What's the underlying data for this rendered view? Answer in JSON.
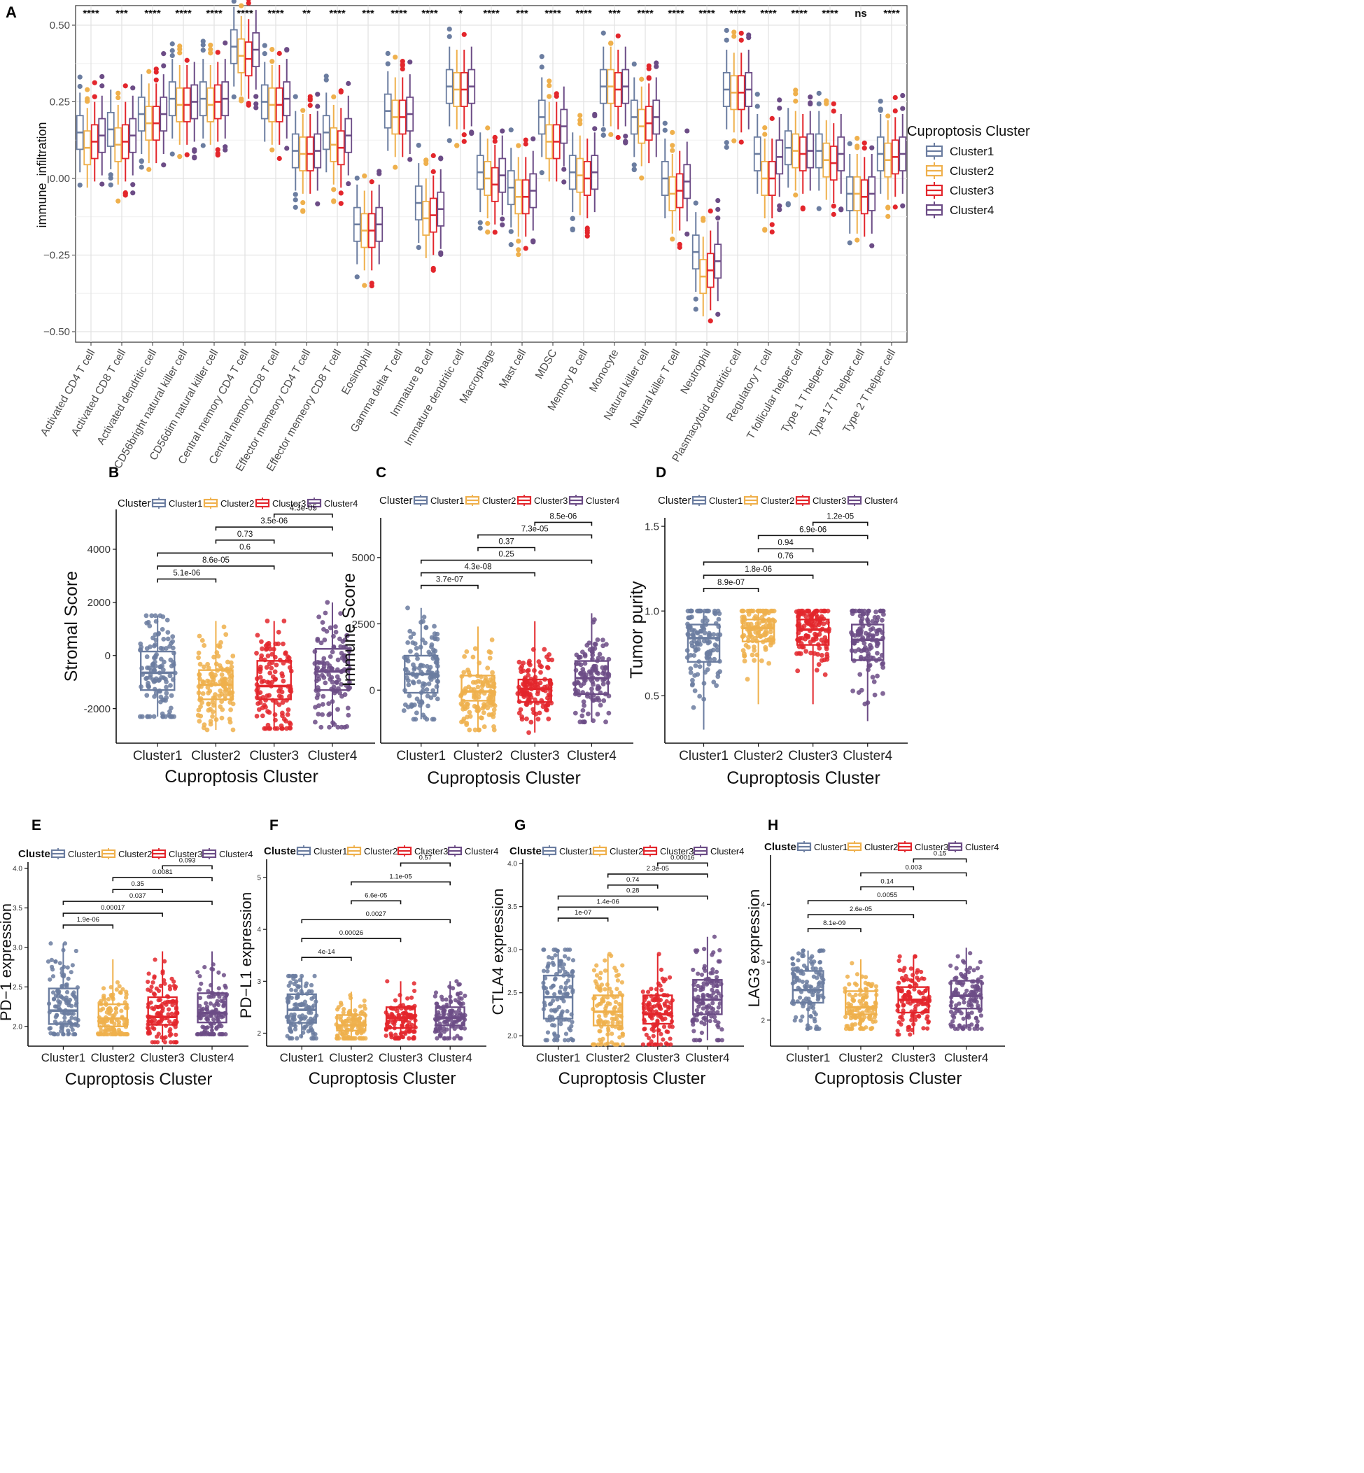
{
  "colors": {
    "Cluster1": "#6b7da0",
    "Cluster2": "#efb04c",
    "Cluster3": "#e3262c",
    "Cluster4": "#6c4c86"
  },
  "chart_data": [
    {
      "panel": "A",
      "type": "box",
      "ylabel": "immune_infiltration",
      "ylim": [
        -0.55,
        0.56
      ],
      "yticks": [
        -0.5,
        -0.25,
        0.0,
        0.25,
        0.5
      ],
      "ytick_labels": [
        "−0.50",
        "−0.25",
        "0.00",
        "0.25",
        "0.50"
      ],
      "legend_title": "Cuproptosis Cluster",
      "series": [
        "Cluster1",
        "Cluster2",
        "Cluster3",
        "Cluster4"
      ],
      "categories": [
        "Activated CD4 T cell",
        "Activated CD8 T cell",
        "Activated dendritic cell",
        "CD56bright natural killer cell",
        "CD56dim natural killer cell",
        "Central memory CD4 T cell",
        "Central memory CD8 T cell",
        "Effector memeory CD4 T cell",
        "Effector memeory CD8 T cell",
        "Eosinophil",
        "Gamma delta T cell",
        "Immature  B cell",
        "Immature dendritic cell",
        "Macrophage",
        "Mast cell",
        "MDSC",
        "Memory B cell",
        "Monocyte",
        "Natural killer cell",
        "Natural killer T cell",
        "Neutrophil",
        "Plasmacytoid dendritic cell",
        "Regulatory T cell",
        "T follicular helper cell",
        "Type 1 T helper cell",
        "Type 17 T helper cell",
        "Type 2 T helper cell"
      ],
      "significance": [
        "****",
        "***",
        "****",
        "****",
        "****",
        "****",
        "****",
        "**",
        "****",
        "***",
        "****",
        "****",
        "*",
        "****",
        "***",
        "****",
        "****",
        "***",
        "****",
        "****",
        "****",
        "****",
        "****",
        "****",
        "****",
        "ns",
        "****"
      ],
      "medians": [
        [
          0.15,
          0.1,
          0.12,
          0.14
        ],
        [
          0.16,
          0.11,
          0.12,
          0.14
        ],
        [
          0.21,
          0.18,
          0.18,
          0.21
        ],
        [
          0.26,
          0.24,
          0.24,
          0.25
        ],
        [
          0.26,
          0.24,
          0.25,
          0.26
        ],
        [
          0.43,
          0.4,
          0.39,
          0.42
        ],
        [
          0.25,
          0.24,
          0.24,
          0.26
        ],
        [
          0.09,
          0.08,
          0.08,
          0.09
        ],
        [
          0.15,
          0.11,
          0.1,
          0.14
        ],
        [
          -0.15,
          -0.17,
          -0.17,
          -0.15
        ],
        [
          0.22,
          0.2,
          0.2,
          0.21
        ],
        [
          -0.08,
          -0.13,
          -0.12,
          -0.1
        ],
        [
          0.3,
          0.29,
          0.29,
          0.3
        ],
        [
          0.02,
          0.0,
          -0.02,
          0.01
        ],
        [
          -0.03,
          -0.06,
          -0.06,
          -0.04
        ],
        [
          0.2,
          0.12,
          0.12,
          0.17
        ],
        [
          0.02,
          0.01,
          0.0,
          0.02
        ],
        [
          0.3,
          0.3,
          0.29,
          0.3
        ],
        [
          0.2,
          0.17,
          0.18,
          0.2
        ],
        [
          0.0,
          -0.05,
          -0.04,
          -0.01
        ],
        [
          -0.24,
          -0.32,
          -0.3,
          -0.27
        ],
        [
          0.29,
          0.28,
          0.28,
          0.29
        ],
        [
          0.08,
          0.0,
          0.0,
          0.07
        ],
        [
          0.1,
          0.09,
          0.08,
          0.09
        ],
        [
          0.09,
          0.06,
          0.05,
          0.08
        ],
        [
          -0.05,
          -0.05,
          -0.06,
          -0.05
        ],
        [
          0.08,
          0.06,
          0.07,
          0.08
        ]
      ]
    },
    {
      "panel": "B",
      "type": "box",
      "xlabel": "Cuproptosis Cluster",
      "ylabel": "Stromal Score",
      "legend_title": "Cluster",
      "categories": [
        "Cluster1",
        "Cluster2",
        "Cluster3",
        "Cluster4"
      ],
      "ylim": [
        -3300,
        5500
      ],
      "yticks": [
        -2000,
        0,
        2000,
        4000
      ],
      "ytick_labels": [
        "-2000",
        "0",
        "2000",
        "4000"
      ],
      "box_stats": [
        [
          -2300,
          -1300,
          -650,
          150,
          1500
        ],
        [
          -2800,
          -1650,
          -1100,
          -550,
          1300
        ],
        [
          -2750,
          -1650,
          -1150,
          -200,
          1300
        ],
        [
          -2700,
          -1300,
          -600,
          250,
          2000
        ]
      ],
      "comparisons": [
        {
          "pair": [
            1,
            2
          ],
          "label": "5.1e-06"
        },
        {
          "pair": [
            1,
            3
          ],
          "label": "8.6e-05"
        },
        {
          "pair": [
            1,
            4
          ],
          "label": "0.6"
        },
        {
          "pair": [
            2,
            3
          ],
          "label": "0.73"
        },
        {
          "pair": [
            2,
            4
          ],
          "label": "3.5e-06"
        },
        {
          "pair": [
            3,
            4
          ],
          "label": "4.3e-05"
        }
      ]
    },
    {
      "panel": "C",
      "type": "box",
      "xlabel": "Cuproptosis Cluster",
      "ylabel": "Immune Score",
      "legend_title": "Cluster",
      "categories": [
        "Cluster1",
        "Cluster2",
        "Cluster3",
        "Cluster4"
      ],
      "ylim": [
        -2000,
        6500
      ],
      "yticks": [
        0,
        2500,
        5000
      ],
      "ytick_labels": [
        "0",
        "2500",
        "5000"
      ],
      "box_stats": [
        [
          -1100,
          -100,
          600,
          1300,
          3100
        ],
        [
          -1500,
          -400,
          -50,
          550,
          2400
        ],
        [
          -1600,
          -450,
          50,
          400,
          2600
        ],
        [
          -1200,
          -150,
          450,
          1100,
          2900
        ]
      ],
      "comparisons": [
        {
          "pair": [
            1,
            2
          ],
          "label": "3.7e-07"
        },
        {
          "pair": [
            1,
            3
          ],
          "label": "4.3e-08"
        },
        {
          "pair": [
            1,
            4
          ],
          "label": "0.25"
        },
        {
          "pair": [
            2,
            3
          ],
          "label": "0.37"
        },
        {
          "pair": [
            2,
            4
          ],
          "label": "7.3e-05"
        },
        {
          "pair": [
            3,
            4
          ],
          "label": "8.5e-06"
        }
      ]
    },
    {
      "panel": "D",
      "type": "box",
      "xlabel": "Cuproptosis Cluster",
      "ylabel": "Tumor purity",
      "legend_title": "Cluster",
      "categories": [
        "Cluster1",
        "Cluster2",
        "Cluster3",
        "Cluster4"
      ],
      "ylim": [
        0.22,
        1.55
      ],
      "yticks": [
        0.5,
        1.0,
        1.5
      ],
      "ytick_labels": [
        "0.5",
        "1.0",
        "1.5"
      ],
      "box_stats": [
        [
          0.3,
          0.7,
          0.84,
          0.92,
          1.0
        ],
        [
          0.45,
          0.82,
          0.9,
          0.95,
          1.0
        ],
        [
          0.45,
          0.8,
          0.89,
          0.95,
          1.0
        ],
        [
          0.35,
          0.71,
          0.83,
          0.92,
          1.0
        ]
      ],
      "comparisons": [
        {
          "pair": [
            1,
            2
          ],
          "label": "8.9e-07"
        },
        {
          "pair": [
            1,
            3
          ],
          "label": "1.8e-06"
        },
        {
          "pair": [
            1,
            4
          ],
          "label": "0.76"
        },
        {
          "pair": [
            2,
            3
          ],
          "label": "0.94"
        },
        {
          "pair": [
            2,
            4
          ],
          "label": "6.9e-06"
        },
        {
          "pair": [
            3,
            4
          ],
          "label": "1.2e-05"
        }
      ]
    },
    {
      "panel": "E",
      "type": "box",
      "xlabel": "Cuproptosis Cluster",
      "ylabel": "PD−1 expression",
      "legend_title": "Cluster",
      "categories": [
        "Cluster1",
        "Cluster2",
        "Cluster3",
        "Cluster4"
      ],
      "ylim": [
        1.75,
        4.08
      ],
      "yticks": [
        2.0,
        2.5,
        3.0,
        3.5,
        4.0
      ],
      "ytick_labels": [
        "2.0",
        "2.5",
        "3.0",
        "3.5",
        "4.0"
      ],
      "box_stats": [
        [
          1.9,
          2.03,
          2.2,
          2.48,
          3.05
        ],
        [
          1.9,
          2.0,
          2.1,
          2.28,
          2.85
        ],
        [
          1.8,
          2.02,
          2.12,
          2.37,
          2.95
        ],
        [
          1.9,
          2.05,
          2.17,
          2.42,
          2.95
        ]
      ],
      "comparisons": [
        {
          "pair": [
            1,
            2
          ],
          "label": "1.9e-06"
        },
        {
          "pair": [
            1,
            3
          ],
          "label": "0.00017"
        },
        {
          "pair": [
            1,
            4
          ],
          "label": "0.037"
        },
        {
          "pair": [
            2,
            3
          ],
          "label": "0.35"
        },
        {
          "pair": [
            2,
            4
          ],
          "label": "0.0081"
        },
        {
          "pair": [
            3,
            4
          ],
          "label": "0.093"
        }
      ]
    },
    {
      "panel": "F",
      "type": "box",
      "xlabel": "Cuproptosis Cluster",
      "ylabel": "PD−L1 expression",
      "legend_title": "Cluster",
      "categories": [
        "Cluster1",
        "Cluster2",
        "Cluster3",
        "Cluster4"
      ],
      "ylim": [
        1.75,
        5.35
      ],
      "yticks": [
        2,
        3,
        4,
        5
      ],
      "ytick_labels": [
        "2",
        "3",
        "4",
        "5"
      ],
      "box_stats": [
        [
          1.9,
          2.2,
          2.45,
          2.75,
          3.1
        ],
        [
          1.9,
          2.05,
          2.15,
          2.35,
          2.8
        ],
        [
          1.9,
          2.1,
          2.3,
          2.5,
          3.0
        ],
        [
          1.9,
          2.15,
          2.3,
          2.5,
          3.0
        ]
      ],
      "comparisons": [
        {
          "pair": [
            1,
            2
          ],
          "label": "4e-14"
        },
        {
          "pair": [
            1,
            3
          ],
          "label": "0.00026"
        },
        {
          "pair": [
            1,
            4
          ],
          "label": "0.0027"
        },
        {
          "pair": [
            2,
            3
          ],
          "label": "6.6e-05"
        },
        {
          "pair": [
            2,
            4
          ],
          "label": "1.1e-05"
        },
        {
          "pair": [
            3,
            4
          ],
          "label": "0.57"
        }
      ]
    },
    {
      "panel": "G",
      "type": "box",
      "xlabel": "Cuproptosis Cluster",
      "ylabel": "CTLA4 expression",
      "legend_title": "Cluster",
      "categories": [
        "Cluster1",
        "Cluster2",
        "Cluster3",
        "Cluster4"
      ],
      "ylim": [
        1.88,
        4.05
      ],
      "yticks": [
        2.0,
        2.5,
        3.0,
        3.5,
        4.0
      ],
      "ytick_labels": [
        "2.0",
        "2.5",
        "3.0",
        "3.5",
        "4.0"
      ],
      "box_stats": [
        [
          1.95,
          2.2,
          2.45,
          2.7,
          3.0
        ],
        [
          1.9,
          2.12,
          2.28,
          2.47,
          2.95
        ],
        [
          1.9,
          2.14,
          2.25,
          2.47,
          2.95
        ],
        [
          1.95,
          2.25,
          2.42,
          2.65,
          3.15
        ]
      ],
      "comparisons": [
        {
          "pair": [
            1,
            2
          ],
          "label": "1e-07"
        },
        {
          "pair": [
            1,
            3
          ],
          "label": "1.4e-06"
        },
        {
          "pair": [
            1,
            4
          ],
          "label": "0.28"
        },
        {
          "pair": [
            2,
            3
          ],
          "label": "0.74"
        },
        {
          "pair": [
            2,
            4
          ],
          "label": "2.3e-05"
        },
        {
          "pair": [
            3,
            4
          ],
          "label": "0.00016"
        }
      ]
    },
    {
      "panel": "H",
      "type": "box",
      "xlabel": "Cuproptosis Cluster",
      "ylabel": "LAG3 expression",
      "legend_title": "Cluster",
      "categories": [
        "Cluster1",
        "Cluster2",
        "Cluster3",
        "Cluster4"
      ],
      "ylim": [
        1.55,
        4.85
      ],
      "yticks": [
        2,
        3,
        4
      ],
      "ytick_labels": [
        "2",
        "3",
        "4"
      ],
      "box_stats": [
        [
          1.85,
          2.3,
          2.52,
          2.85,
          3.2
        ],
        [
          1.85,
          2.1,
          2.22,
          2.5,
          3.05
        ],
        [
          1.75,
          2.13,
          2.35,
          2.57,
          3.1
        ],
        [
          1.85,
          2.2,
          2.42,
          2.68,
          3.25
        ]
      ],
      "comparisons": [
        {
          "pair": [
            1,
            2
          ],
          "label": "8.1e-09"
        },
        {
          "pair": [
            1,
            3
          ],
          "label": "2.6e-05"
        },
        {
          "pair": [
            1,
            4
          ],
          "label": "0.0055"
        },
        {
          "pair": [
            2,
            3
          ],
          "label": "0.14"
        },
        {
          "pair": [
            2,
            4
          ],
          "label": "0.003"
        },
        {
          "pair": [
            3,
            4
          ],
          "label": "0.15"
        }
      ]
    }
  ]
}
